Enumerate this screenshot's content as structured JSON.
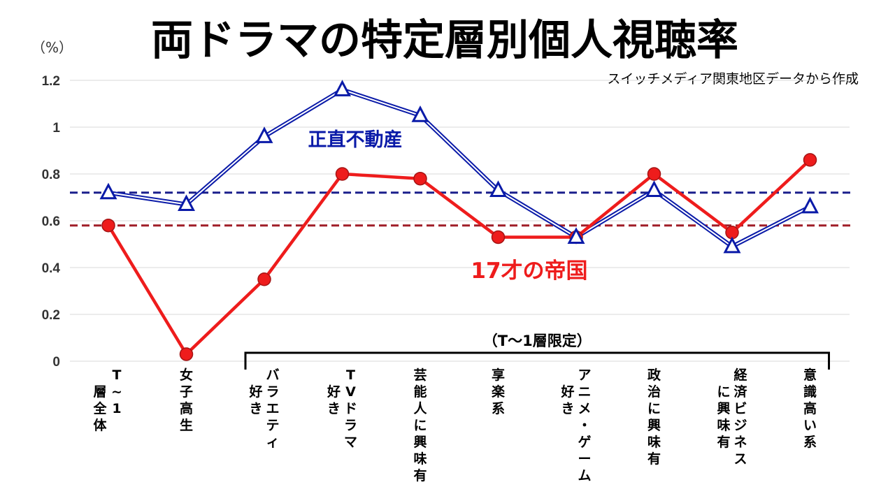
{
  "chart_data": {
    "type": "line",
    "title": "両ドラマの特定層別個人視聴率",
    "unit_label": "（%）",
    "source_note": "スイッチメディア関東地区データから作成",
    "ylim": [
      0,
      1.2
    ],
    "yticks": [
      "0",
      "0.2",
      "0.4",
      "0.6",
      "0.8",
      "1",
      "1.2"
    ],
    "ytick_values": [
      0,
      0.2,
      0.4,
      0.6,
      0.8,
      1.0,
      1.2
    ],
    "grid": true,
    "categories": [
      [
        "T~1",
        "層全体"
      ],
      [
        "女子高生"
      ],
      [
        "バラエティ",
        "好き"
      ],
      [
        "TVドラマ",
        "好き"
      ],
      [
        "芸能人に興味有"
      ],
      [
        "享楽系"
      ],
      [
        "アニメ・ゲーム",
        "好き"
      ],
      [
        "政治に興味有"
      ],
      [
        "経済ビジネス",
        "に興味有"
      ],
      [
        "意識高い系"
      ]
    ],
    "series": [
      {
        "name": "正直不動産",
        "color": "#0a1aa8",
        "marker": "triangle",
        "values": [
          0.72,
          0.67,
          0.96,
          1.16,
          1.05,
          0.73,
          0.53,
          0.73,
          0.49,
          0.66
        ],
        "average": 0.72
      },
      {
        "name": "17才の帝国",
        "color": "#ee1c1c",
        "marker": "circle",
        "values": [
          0.58,
          0.03,
          0.35,
          0.8,
          0.78,
          0.53,
          0.53,
          0.8,
          0.55,
          0.86
        ],
        "average": 0.58
      }
    ],
    "average_line_colors": [
      "#1a1f8c",
      "#a01e28"
    ],
    "bracket": {
      "label": "（T〜1層限定）",
      "from_index": 2,
      "to_index": 9
    }
  }
}
